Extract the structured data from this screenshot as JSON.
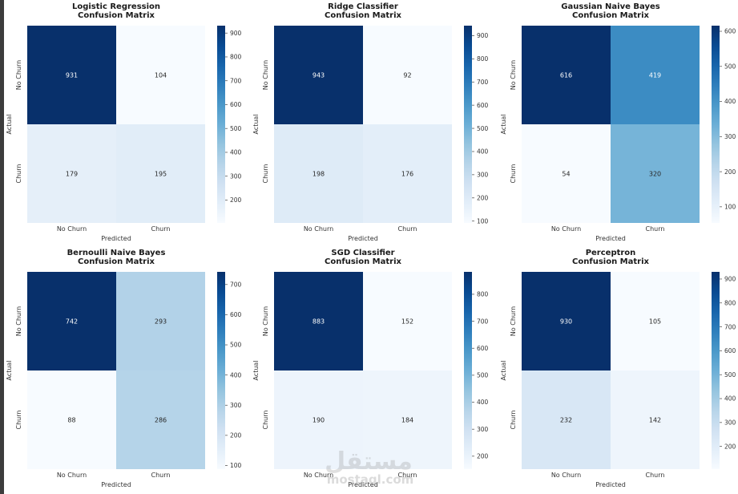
{
  "chart_data": [
    {
      "type": "heatmap",
      "title": "Logistic Regression",
      "subtitle": "Confusion Matrix",
      "xlabel": "Predicted",
      "ylabel": "Actual",
      "x_categories": [
        "No Churn",
        "Churn"
      ],
      "y_categories": [
        "No Churn",
        "Churn"
      ],
      "values": [
        [
          931,
          104
        ],
        [
          179,
          195
        ]
      ],
      "colorbar_ticks": [
        200,
        300,
        400,
        500,
        600,
        700,
        800,
        900
      ]
    },
    {
      "type": "heatmap",
      "title": "Ridge Classifier",
      "subtitle": "Confusion Matrix",
      "xlabel": "Predicted",
      "ylabel": "Actual",
      "x_categories": [
        "No Churn",
        "Churn"
      ],
      "y_categories": [
        "No Churn",
        "Churn"
      ],
      "values": [
        [
          943,
          92
        ],
        [
          198,
          176
        ]
      ],
      "colorbar_ticks": [
        100,
        200,
        300,
        400,
        500,
        600,
        700,
        800,
        900
      ]
    },
    {
      "type": "heatmap",
      "title": "Gaussian Naive Bayes",
      "subtitle": "Confusion Matrix",
      "xlabel": "Predicted",
      "ylabel": "Actual",
      "x_categories": [
        "No Churn",
        "Churn"
      ],
      "y_categories": [
        "No Churn",
        "Churn"
      ],
      "values": [
        [
          616,
          419
        ],
        [
          54,
          320
        ]
      ],
      "colorbar_ticks": [
        100,
        200,
        300,
        400,
        500,
        600
      ]
    },
    {
      "type": "heatmap",
      "title": "Bernoulli Naive Bayes",
      "subtitle": "Confusion Matrix",
      "xlabel": "Predicted",
      "ylabel": "Actual",
      "x_categories": [
        "No Churn",
        "Churn"
      ],
      "y_categories": [
        "No Churn",
        "Churn"
      ],
      "values": [
        [
          742,
          293
        ],
        [
          88,
          286
        ]
      ],
      "colorbar_ticks": [
        100,
        200,
        300,
        400,
        500,
        600,
        700
      ]
    },
    {
      "type": "heatmap",
      "title": "SGD Classifier",
      "subtitle": "Confusion Matrix",
      "xlabel": "Predicted",
      "ylabel": "Actual",
      "x_categories": [
        "No Churn",
        "Churn"
      ],
      "y_categories": [
        "No Churn",
        "Churn"
      ],
      "values": [
        [
          883,
          152
        ],
        [
          190,
          184
        ]
      ],
      "colorbar_ticks": [
        200,
        300,
        400,
        500,
        600,
        700,
        800
      ]
    },
    {
      "type": "heatmap",
      "title": "Perceptron",
      "subtitle": "Confusion Matrix",
      "xlabel": "Predicted",
      "ylabel": "Actual",
      "x_categories": [
        "No Churn",
        "Churn"
      ],
      "y_categories": [
        "No Churn",
        "Churn"
      ],
      "values": [
        [
          930,
          105
        ],
        [
          232,
          142
        ]
      ],
      "colorbar_ticks": [
        200,
        300,
        400,
        500,
        600,
        700,
        800,
        900
      ]
    }
  ],
  "colormap": "Blues",
  "watermark": {
    "logo_text": "مستقل",
    "site_text": "mostaql.com"
  }
}
